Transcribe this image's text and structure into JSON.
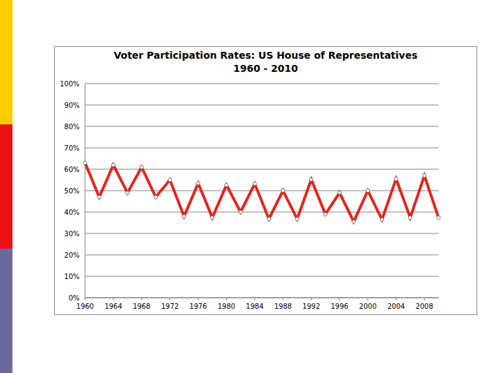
{
  "chart_data": {
    "type": "line",
    "title": "Voter Participation Rates: US House of Representatives",
    "subtitle": "1960 - 2010",
    "x": [
      1960,
      1962,
      1964,
      1966,
      1968,
      1970,
      1972,
      1974,
      1976,
      1978,
      1980,
      1982,
      1984,
      1986,
      1988,
      1990,
      1992,
      1994,
      1996,
      1998,
      2000,
      2002,
      2004,
      2006,
      2008,
      2010
    ],
    "values": [
      63,
      47,
      62,
      49,
      61,
      47,
      55,
      38,
      53.5,
      37.4,
      52.6,
      40,
      53.2,
      36.8,
      50,
      36.8,
      55.2,
      39,
      49,
      35.5,
      50,
      36.5,
      55.5,
      37.4,
      57,
      37.4
    ],
    "color": "#e3241e",
    "marker": "circle",
    "xlim": [
      1960,
      2010
    ],
    "xticks": [
      1960,
      1964,
      1968,
      1972,
      1976,
      1980,
      1984,
      1988,
      1992,
      1996,
      2000,
      2004,
      2008
    ],
    "ylim": [
      0,
      100
    ],
    "yticks": [
      {
        "value": 0,
        "label": "0%"
      },
      {
        "value": 10,
        "label": "10%"
      },
      {
        "value": 20,
        "label": "20%"
      },
      {
        "value": 30,
        "label": "30%"
      },
      {
        "value": 40,
        "label": "40%"
      },
      {
        "value": 50,
        "label": "50%"
      },
      {
        "value": 60,
        "label": "60%"
      },
      {
        "value": 70,
        "label": "70%"
      },
      {
        "value": 80,
        "label": "80%"
      },
      {
        "value": 90,
        "label": "90%"
      },
      {
        "value": 100,
        "label": "100%"
      }
    ],
    "grid": true
  }
}
